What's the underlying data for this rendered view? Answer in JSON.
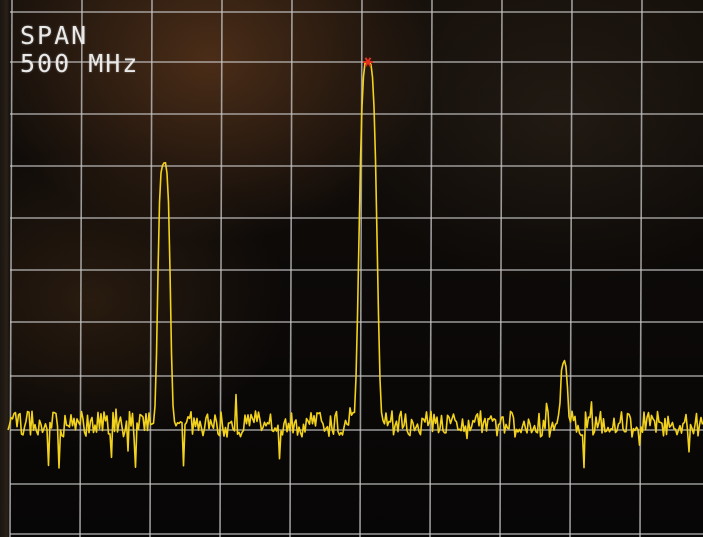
{
  "display": {
    "span_label": "SPAN",
    "span_value": "500 MHz"
  },
  "colors": {
    "trace": "#f2d21c",
    "grid": "#c9c9c9",
    "marker": "#e0301e"
  },
  "icons": {
    "peak_marker": "peak-marker-icon"
  }
}
